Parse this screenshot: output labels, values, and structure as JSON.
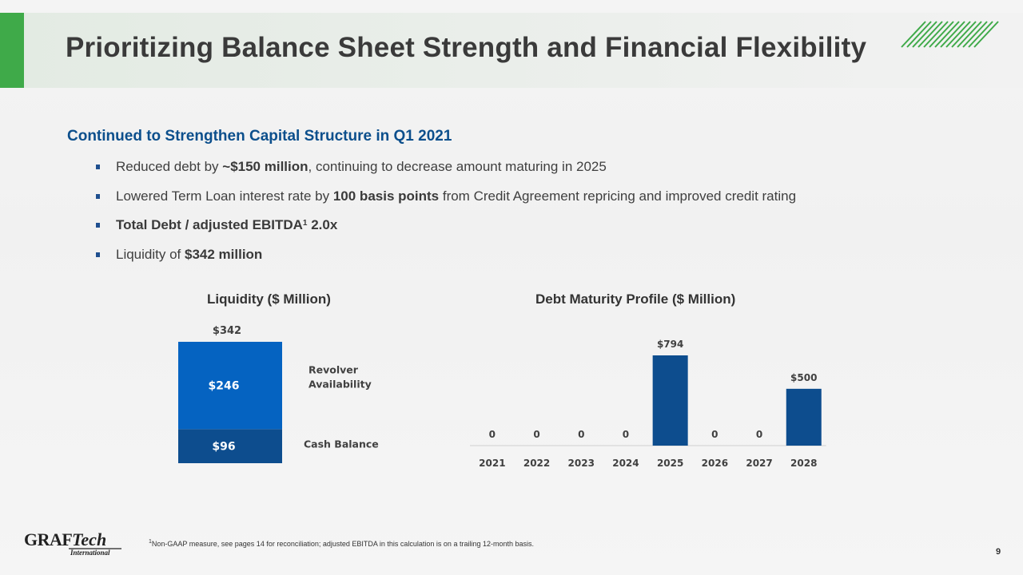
{
  "header": {
    "title": "Prioritizing Balance Sheet Strength and Financial Flexibility",
    "accent_color": "#3faa49"
  },
  "section": {
    "subtitle": "Continued to Strengthen Capital Structure in Q1 2021",
    "bullets": [
      {
        "pre": "Reduced debt by ",
        "bold": "~$150 million",
        "post": ", continuing to decrease amount maturing in 2025"
      },
      {
        "pre": "Lowered Term Loan interest rate by ",
        "bold": "100 basis points",
        "post": " from Credit Agreement repricing and improved credit rating"
      },
      {
        "bold_a": "Total Debt / adjusted EBITDA",
        "sup": "1",
        "bold_b": " 2.0x"
      },
      {
        "pre": "Liquidity of ",
        "bold": "$342 million"
      }
    ]
  },
  "chart_data": [
    {
      "type": "bar",
      "stacked": true,
      "title": "Liquidity ($ Million)",
      "total_label": "$342",
      "series": [
        {
          "name": "Cash Balance",
          "value": 96,
          "label": "$96",
          "color": "#0d4d8e"
        },
        {
          "name": "Revolver Availability",
          "name_lines": [
            "Revolver",
            "Availability"
          ],
          "value": 246,
          "label": "$246",
          "color": "#0563c1"
        }
      ],
      "total": 342
    },
    {
      "type": "bar",
      "title": "Debt Maturity Profile ($ Million)",
      "categories": [
        "2021",
        "2022",
        "2023",
        "2024",
        "2025",
        "2026",
        "2027",
        "2028"
      ],
      "values": [
        0,
        0,
        0,
        0,
        794,
        0,
        0,
        500
      ],
      "labels": [
        "0",
        "0",
        "0",
        "0",
        "$794",
        "0",
        "0",
        "$500"
      ],
      "color": "#0d4d8e"
    }
  ],
  "footer": {
    "footnote_sup": "1",
    "footnote": "Non-GAAP measure, see pages 14 for reconciliation; adjusted EBITDA in this calculation is on a trailing 12-month basis.",
    "page_number": "9",
    "logo_text": "GRAFTech",
    "logo_sub": "International"
  }
}
